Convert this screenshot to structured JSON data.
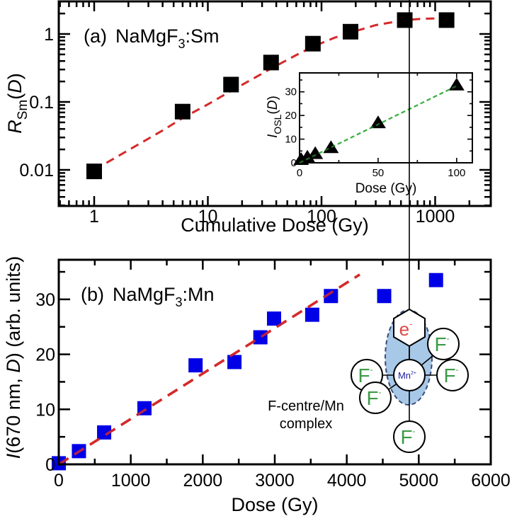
{
  "chart_data": [
    {
      "id": "panel-a",
      "type": "scatter",
      "panel_label": "(a)",
      "title": "NaMgF3:Sm",
      "title_parts": {
        "base": "NaMgF",
        "sub": "3",
        "suffix": ":Sm"
      },
      "xlabel": "Cumulative Dose (Gy)",
      "ylabel": "R_Sm(D)",
      "ylabel_parts": {
        "main": "R",
        "sub": "Sm",
        "suffix": "(D)"
      },
      "xscale": "log",
      "yscale": "log",
      "xlim": [
        0.5,
        2200
      ],
      "ylim": [
        0.003,
        2.8
      ],
      "xticks": [
        1,
        10,
        100,
        1000
      ],
      "xtick_labels": [
        "1",
        "10",
        "100",
        "1000"
      ],
      "yticks": [
        0.01,
        0.1,
        1
      ],
      "ytick_labels": [
        "0.01",
        "0.1",
        "1"
      ],
      "grid": false,
      "series": [
        {
          "name": "R_Sm data",
          "marker": "square",
          "color": "#000000",
          "x": [
            1,
            6,
            16,
            36,
            84,
            180,
            540,
            1260
          ],
          "y": [
            0.0095,
            0.072,
            0.18,
            0.38,
            0.72,
            1.08,
            1.6,
            1.6
          ]
        },
        {
          "name": "fit",
          "style": "dashed-line",
          "color": "#d42a2a",
          "x": [
            1,
            2,
            4,
            6,
            10,
            16,
            25,
            36,
            60,
            84,
            130,
            180,
            300,
            540,
            800,
            1260
          ],
          "y": [
            0.01,
            0.0195,
            0.038,
            0.058,
            0.092,
            0.145,
            0.22,
            0.31,
            0.49,
            0.65,
            0.88,
            1.05,
            1.35,
            1.6,
            1.68,
            1.7
          ]
        }
      ],
      "inset": {
        "type": "scatter",
        "xlabel": "Dose (Gy)",
        "ylabel": "I_OSL(D)",
        "ylabel_parts": {
          "main": "I",
          "sub": "OSL",
          "suffix": "(D)"
        },
        "xlim": [
          0,
          110
        ],
        "ylim": [
          0,
          38
        ],
        "xticks": [
          0,
          50,
          100
        ],
        "xtick_labels": [
          "0",
          "50",
          "100"
        ],
        "yticks": [
          0,
          10,
          20,
          30
        ],
        "ytick_labels": [
          "0",
          "10",
          "20",
          "30"
        ],
        "series": [
          {
            "name": "I_OSL data",
            "marker": "triangle",
            "color": "#000000",
            "x": [
              1,
              5,
              10,
              20,
              50,
              100
            ],
            "y": [
              1.5,
              2.5,
              4,
              6.5,
              17,
              33
            ]
          },
          {
            "name": "linear fit",
            "style": "dashed-line",
            "color": "#3cb043",
            "x": [
              0,
              100
            ],
            "y": [
              0,
              32.5
            ]
          }
        ]
      }
    },
    {
      "id": "panel-b",
      "type": "scatter",
      "panel_label": "(b)",
      "title": "NaMgF3:Mn",
      "title_parts": {
        "base": "NaMgF",
        "sub": "3",
        "suffix": ":Mn"
      },
      "xlabel": "Dose (Gy)",
      "ylabel": "I(670 nm, D) (arb. units)",
      "ylabel_parts": {
        "italic": "I",
        "a": "(670 nm, ",
        "italic2": "D",
        "b": ") (arb. units)"
      },
      "xlim": [
        0,
        6000
      ],
      "ylim": [
        0,
        37
      ],
      "xticks": [
        0,
        1000,
        2000,
        3000,
        4000,
        5000,
        6000
      ],
      "xtick_labels": [
        "0",
        "1000",
        "2000",
        "3000",
        "4000",
        "5000",
        "6000"
      ],
      "yticks": [
        0,
        10,
        20,
        30
      ],
      "ytick_labels": [
        "0",
        "10",
        "20",
        "30"
      ],
      "grid": false,
      "series": [
        {
          "name": "Mn data",
          "marker": "square",
          "color": "#0000e6",
          "x": [
            0,
            280,
            630,
            1190,
            1900,
            2440,
            2800,
            2990,
            3520,
            3780,
            4520,
            5240
          ],
          "y": [
            0.2,
            2.4,
            5.8,
            10.2,
            18.0,
            18.6,
            23.1,
            26.5,
            27.2,
            30.6,
            30.6,
            33.5
          ]
        },
        {
          "name": "linear fit",
          "style": "dashed-line",
          "color": "#d42a2a",
          "x": [
            0,
            4180
          ],
          "y": [
            0,
            34.5
          ]
        }
      ],
      "annotation": {
        "label_line1": "F-centre/Mn",
        "label_line2": "complex",
        "center_ion": "Mn",
        "center_charge": "2+",
        "electron": "e",
        "electron_charge": "-",
        "ligand": "F",
        "ligand_charge": "-",
        "ligand_count": 5,
        "highlight_color": "#a8c8e8",
        "electron_color": "#e04848",
        "ligand_color": "#3c9a48",
        "ion_color": "#1a1aa0"
      }
    }
  ]
}
